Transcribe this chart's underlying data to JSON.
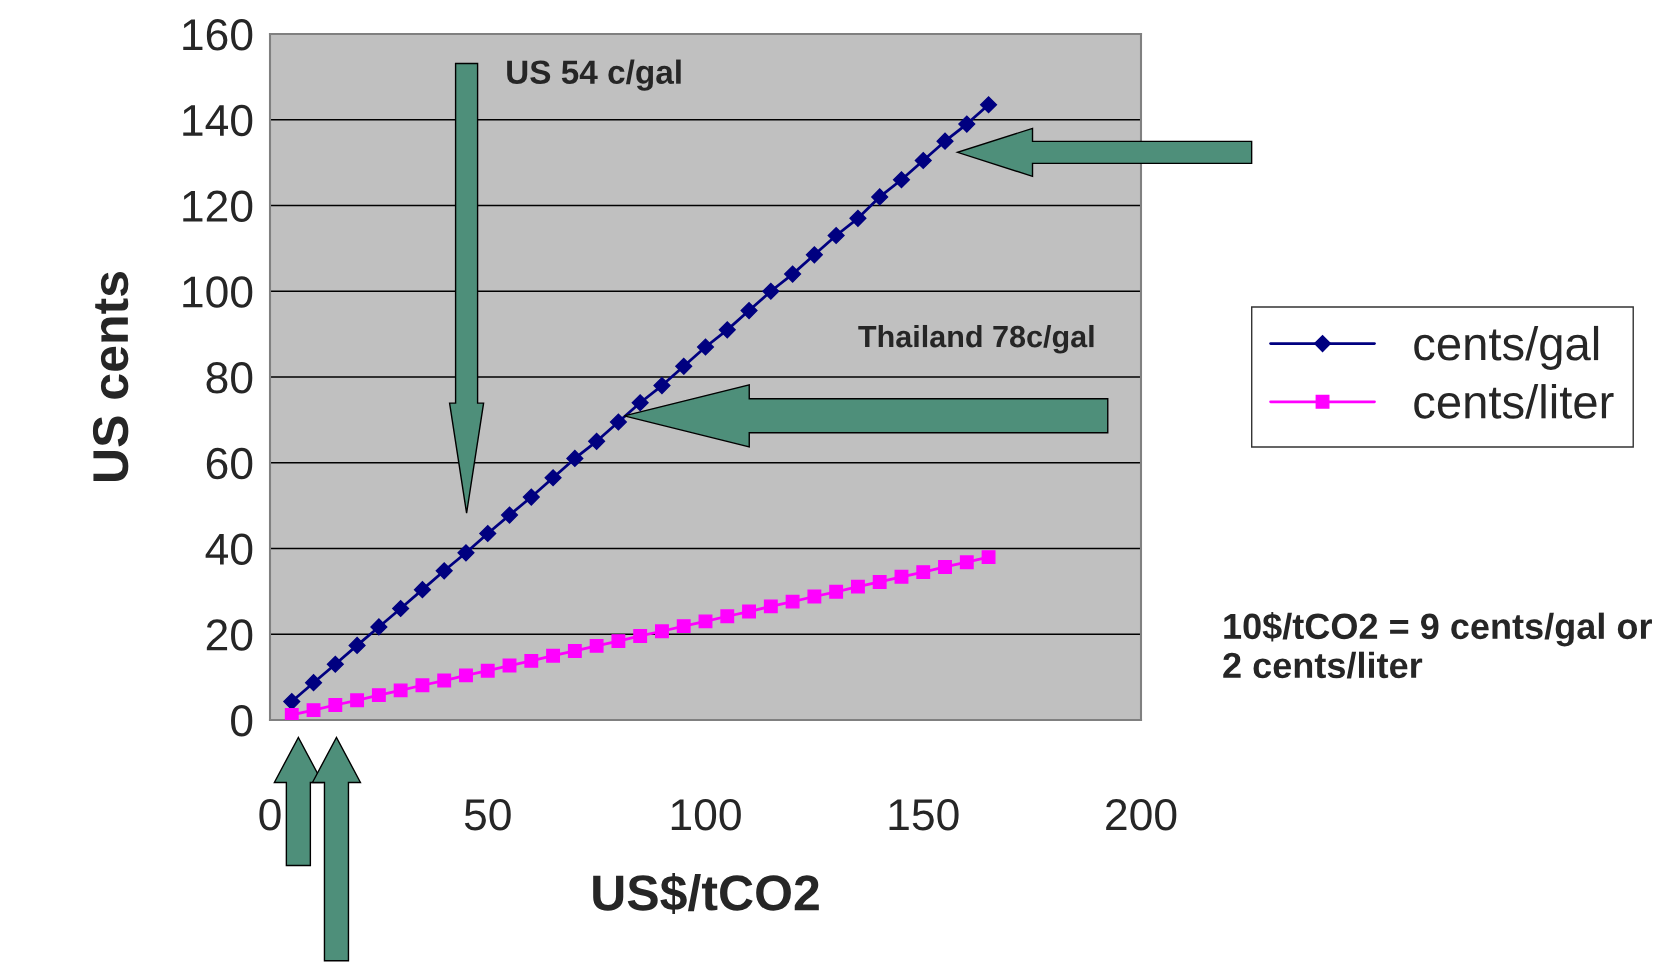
{
  "chart_data": {
    "type": "line",
    "xlabel": "US$/tCO2",
    "ylabel": "US cents",
    "x": [
      5,
      10,
      15,
      20,
      25,
      30,
      35,
      40,
      45,
      50,
      55,
      60,
      65,
      70,
      75,
      80,
      85,
      90,
      95,
      100,
      105,
      110,
      115,
      120,
      125,
      130,
      135,
      140,
      145,
      150,
      155,
      160,
      165
    ],
    "series": [
      {
        "name": "cents/gal",
        "color": "#000080",
        "marker": "diamond",
        "values": [
          4.3,
          8.7,
          13,
          17.4,
          21.7,
          26,
          30.4,
          34.8,
          39,
          43.5,
          47.8,
          52,
          56.5,
          61,
          65,
          69.5,
          74,
          78,
          82.5,
          87,
          91,
          95.5,
          100,
          104,
          108.5,
          113,
          117,
          122,
          126,
          130.5,
          135,
          139,
          143.5
        ]
      },
      {
        "name": "cents/liter",
        "color": "#ff00ff",
        "marker": "square",
        "values": [
          1.2,
          2.3,
          3.5,
          4.6,
          5.8,
          6.9,
          8.1,
          9.2,
          10.4,
          11.5,
          12.7,
          13.8,
          15,
          16.1,
          17.3,
          18.4,
          19.6,
          20.7,
          21.9,
          23,
          24.2,
          25.3,
          26.5,
          27.6,
          28.8,
          29.9,
          31.1,
          32.2,
          33.4,
          34.5,
          35.7,
          36.8,
          38
        ]
      }
    ],
    "xlim": [
      0,
      200
    ],
    "xticks": [
      0,
      50,
      100,
      150,
      200
    ],
    "ylim": [
      0,
      160
    ],
    "yticks": [
      0,
      20,
      40,
      60,
      80,
      100,
      120,
      140,
      160
    ],
    "grid": "y",
    "legend": "right",
    "annotations": [
      "US 54 c/gal",
      "Thailand 78c/gal",
      "10$/tCO2 = 9 cents/gal or 2 cents/liter"
    ]
  }
}
